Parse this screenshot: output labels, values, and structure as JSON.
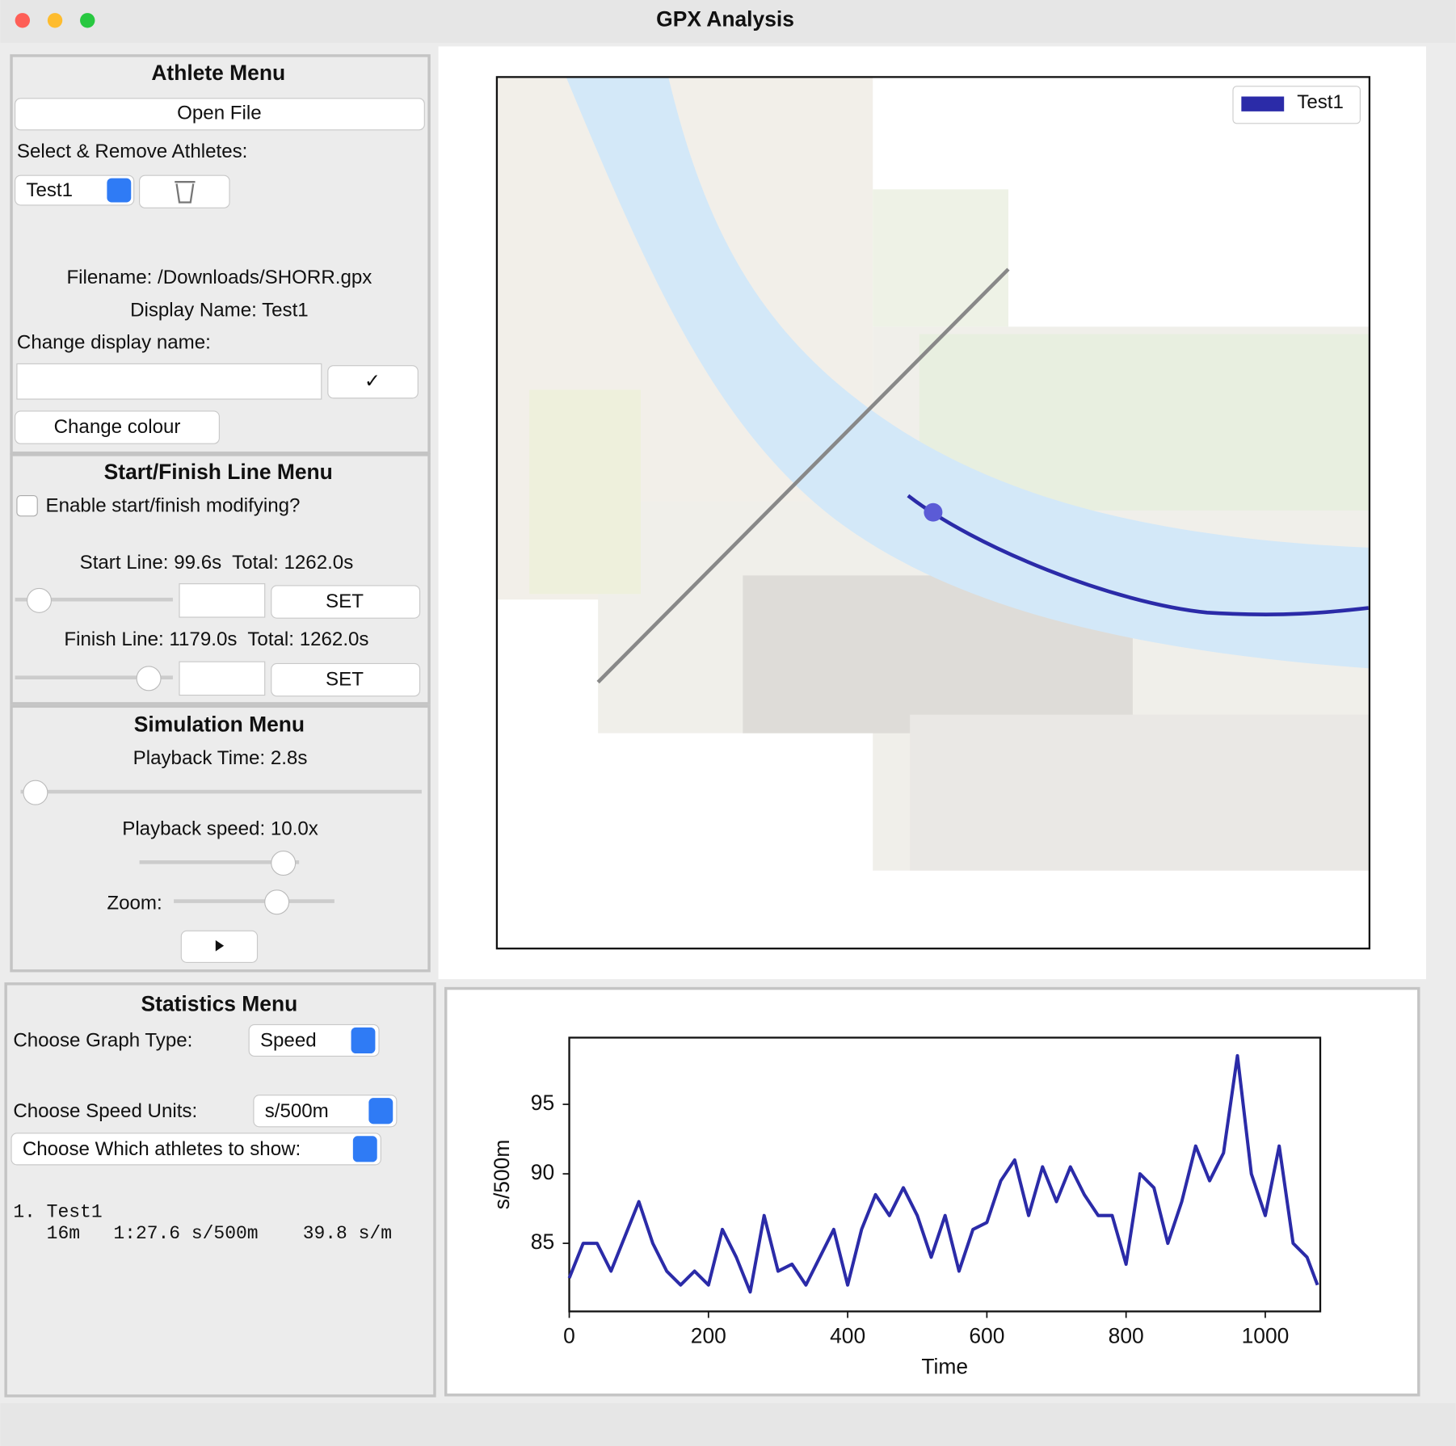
{
  "window_title": "GPX Analysis",
  "athlete_menu": {
    "title": "Athlete Menu",
    "open_file": "Open File",
    "select_label": "Select & Remove Athletes:",
    "athlete_select": "Test1",
    "filename": "Filename: /Downloads/SHORR.gpx",
    "display_name": "Display Name: Test1",
    "change_label": "Change display name:",
    "confirm": "✓",
    "change_colour": "Change colour"
  },
  "start_finish_menu": {
    "title": "Start/Finish Line Menu",
    "enable": "Enable start/finish modifying?",
    "start_line": "Start Line: 99.6s  Total: 1262.0s",
    "start_set": "SET",
    "finish_line": "Finish Line: 1179.0s  Total: 1262.0s",
    "finish_set": "SET"
  },
  "simulation_menu": {
    "title": "Simulation Menu",
    "playback_time": "Playback Time: 2.8s",
    "playback_speed": "Playback speed: 10.0x",
    "zoom": "Zoom:"
  },
  "statistics_menu": {
    "title": "Statistics Menu",
    "graph_type_label": "Choose Graph Type:",
    "graph_type": "Speed",
    "units_label": "Choose Speed Units:",
    "units": "s/500m",
    "athletes_select": "Choose Which athletes to show:",
    "results": [
      "1. Test1",
      "   16m   1:27.6 s/500m    39.8 s/m"
    ]
  },
  "map": {
    "legend": [
      {
        "name": "Test1",
        "color": "#2b2ba8"
      }
    ]
  },
  "chart_data": {
    "type": "line",
    "y_label": "s/500m",
    "x_label": "Time",
    "x": [
      0,
      20,
      40,
      60,
      80,
      100,
      120,
      140,
      160,
      180,
      200,
      220,
      240,
      260,
      280,
      300,
      320,
      340,
      360,
      380,
      400,
      420,
      440,
      460,
      480,
      500,
      520,
      540,
      560,
      580,
      600,
      620,
      640,
      660,
      680,
      700,
      720,
      740,
      760,
      780,
      800,
      820,
      840,
      860,
      880,
      900,
      920,
      940,
      960,
      980,
      1000,
      1020,
      1040,
      1060,
      1075
    ],
    "series": [
      {
        "name": "Test1",
        "color": "#2b2ba8",
        "values": [
          82.5,
          85,
          85,
          83,
          85.5,
          88,
          85,
          83,
          82,
          83,
          82,
          86,
          84,
          81.5,
          87,
          83,
          83.5,
          82,
          84,
          86,
          82,
          86,
          88.5,
          87,
          89,
          87,
          84,
          87,
          83,
          86,
          86.5,
          89.5,
          91,
          87,
          90.5,
          88,
          90.5,
          88.5,
          87,
          87,
          83.5,
          90,
          89,
          85,
          88,
          92,
          89.5,
          91.5,
          98.5,
          90,
          87,
          92,
          85,
          84,
          82
        ]
      }
    ],
    "xlim": [
      0,
      1079
    ],
    "xticks": [
      0,
      200,
      400,
      600,
      800,
      1000
    ],
    "ylim": [
      80.1,
      99.8
    ],
    "yticks": [
      85,
      90,
      95
    ]
  }
}
